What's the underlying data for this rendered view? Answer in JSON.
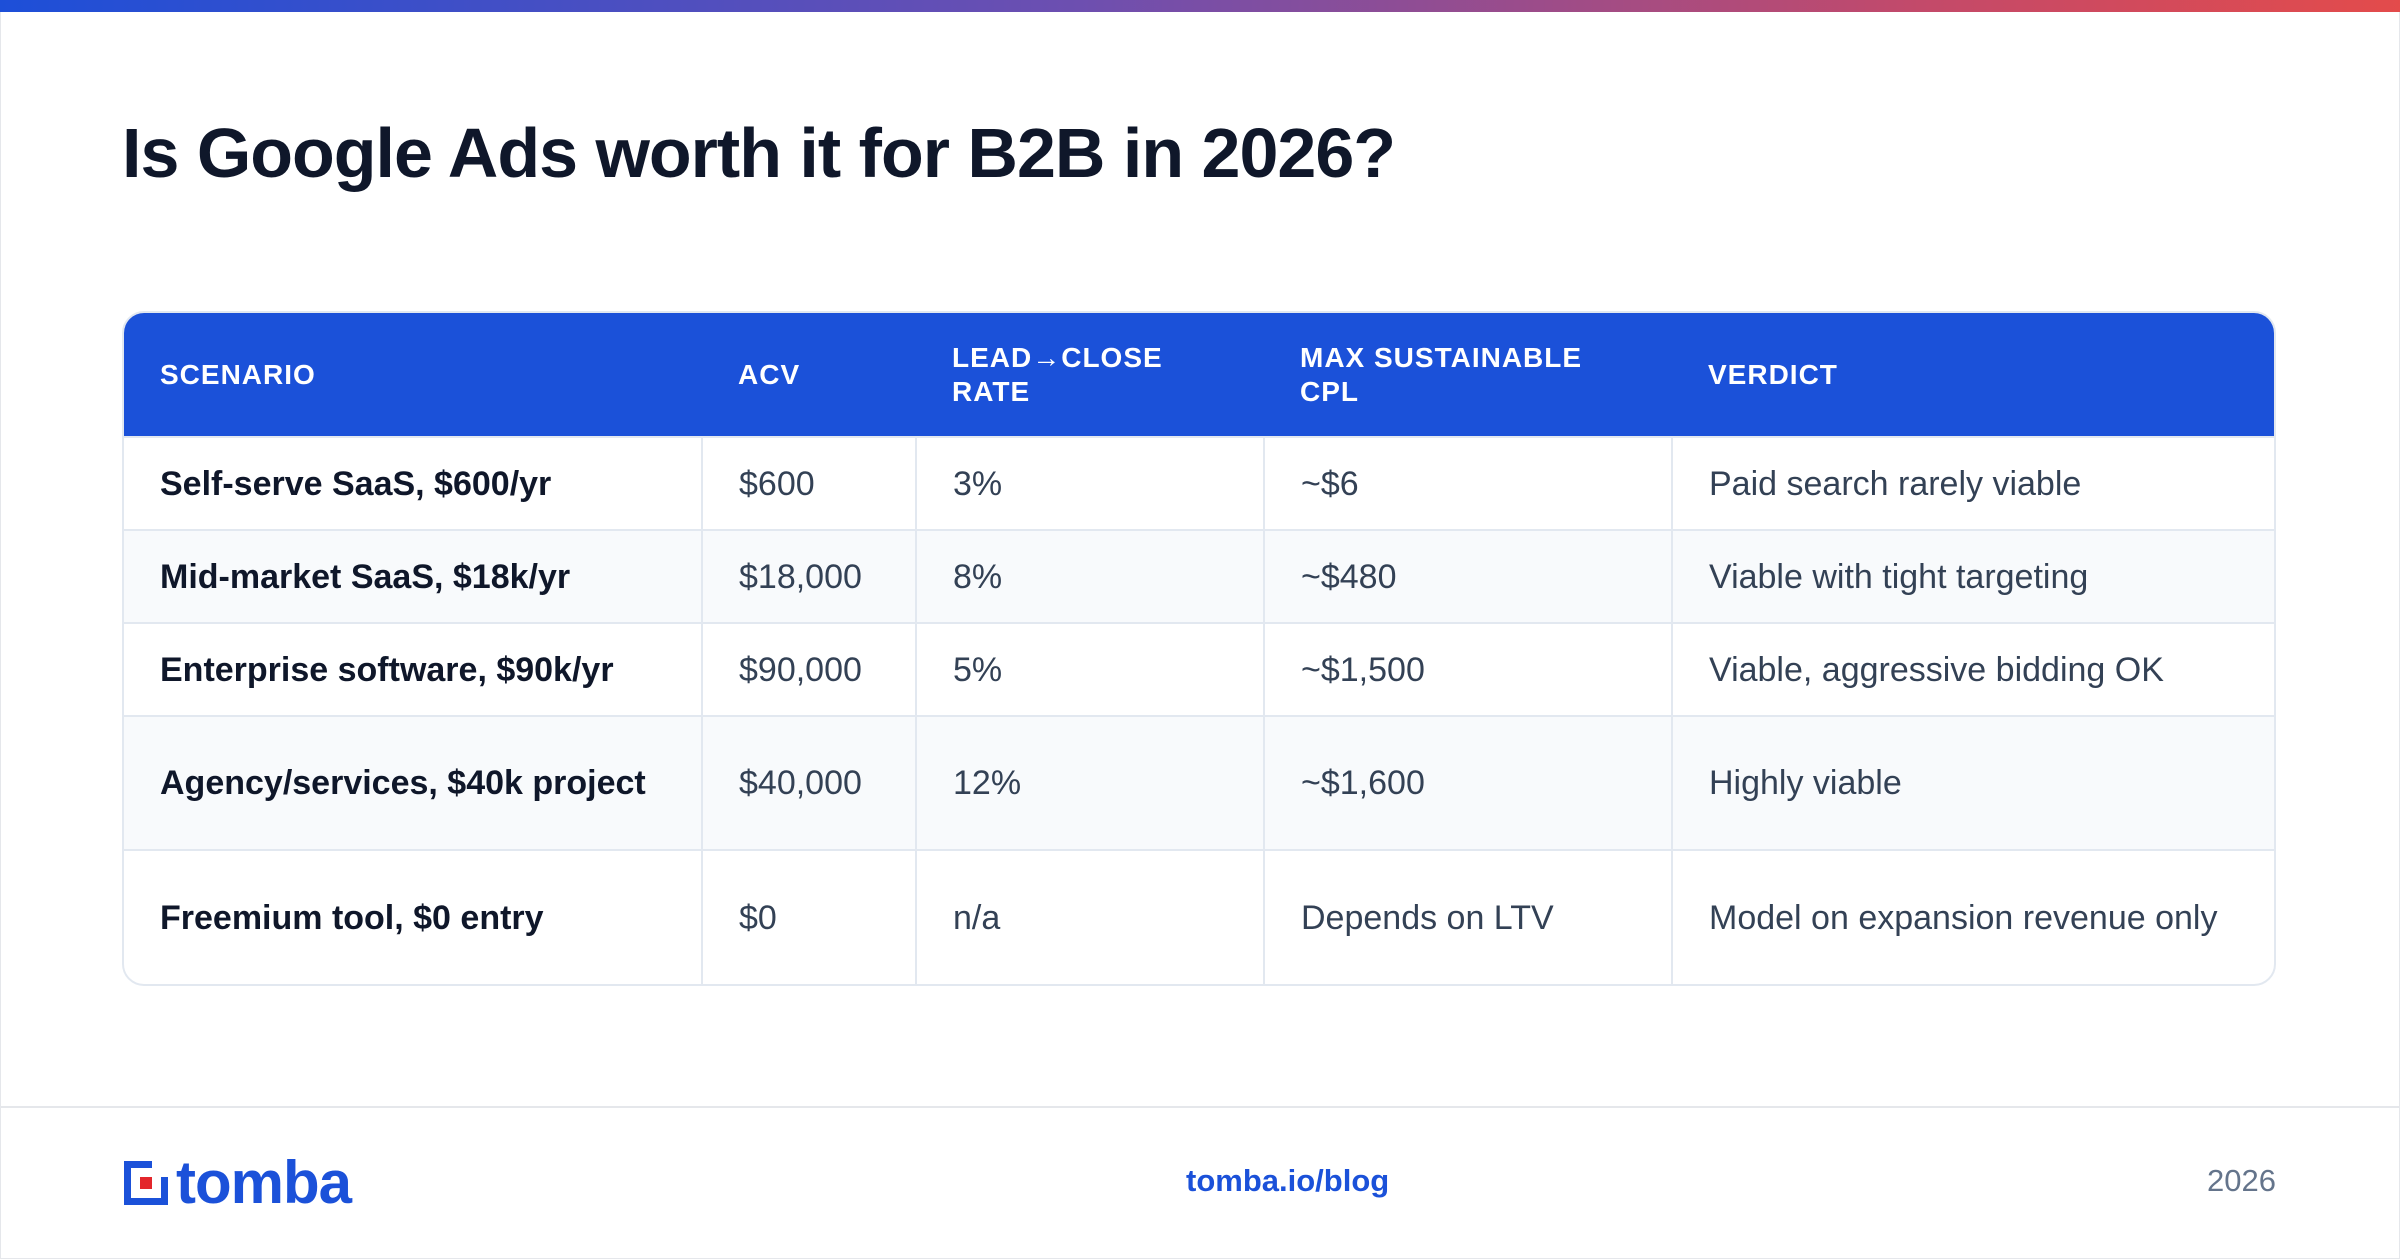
{
  "title": "Is Google Ads worth it for B2B in 2026?",
  "table": {
    "headers": [
      "SCENARIO",
      "ACV",
      "LEAD→CLOSE RATE",
      "MAX SUSTAINABLE CPL",
      "VERDICT"
    ],
    "rows": [
      [
        "Self-serve SaaS, $600/yr",
        "$600",
        "3%",
        "~$6",
        "Paid search rarely viable"
      ],
      [
        "Mid-market SaaS, $18k/yr",
        "$18,000",
        "8%",
        "~$480",
        "Viable with tight targeting"
      ],
      [
        "Enterprise software, $90k/yr",
        "$90,000",
        "5%",
        "~$1,500",
        "Viable, aggressive bidding OK"
      ],
      [
        "Agency/services, $40k project",
        "$40,000",
        "12%",
        "~$1,600",
        "Highly viable"
      ],
      [
        "Freemium tool, $0 entry",
        "$0",
        "n/a",
        "Depends on LTV",
        "Model on expansion revenue only"
      ]
    ]
  },
  "footer": {
    "logo_text": "tomba",
    "link": "tomba.io/blog",
    "year": "2026"
  },
  "colors": {
    "brand_blue": "#1b51d9",
    "logo_red": "#e3262b"
  }
}
